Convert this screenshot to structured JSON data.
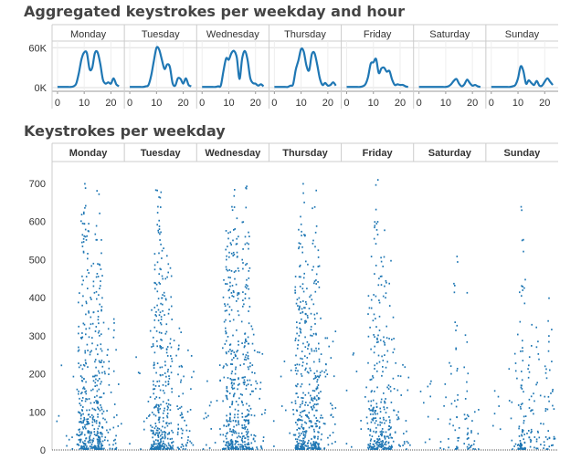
{
  "chart_data": [
    {
      "type": "line",
      "title": "Aggregated keystrokes per weekday and hour",
      "panels": [
        "Monday",
        "Tuesday",
        "Wednesday",
        "Thursday",
        "Friday",
        "Saturday",
        "Sunday"
      ],
      "xlabel": "",
      "ylabel": "",
      "x_ticks": [
        "0",
        "10",
        "20"
      ],
      "y_ticks": [
        "0K",
        "60K"
      ],
      "ylim": [
        0,
        70000
      ],
      "xlim": [
        -1,
        24
      ],
      "x": [
        0,
        1,
        2,
        3,
        4,
        5,
        6,
        7,
        8,
        9,
        10,
        11,
        12,
        13,
        14,
        15,
        16,
        17,
        18,
        19,
        20,
        21,
        22,
        23
      ],
      "series": [
        {
          "panel": "Monday",
          "values": [
            1000,
            1000,
            1000,
            1000,
            1000,
            1000,
            2000,
            6000,
            22000,
            43000,
            53000,
            52000,
            28000,
            30000,
            52000,
            53000,
            36000,
            12000,
            6000,
            8000,
            6000,
            14000,
            5000,
            2000
          ]
        },
        {
          "panel": "Tuesday",
          "values": [
            1000,
            1000,
            1000,
            1000,
            1000,
            1000,
            2000,
            4000,
            18000,
            40000,
            60000,
            57000,
            42000,
            28000,
            35000,
            31000,
            7000,
            3000,
            14000,
            13000,
            6000,
            14000,
            4000,
            2000
          ]
        },
        {
          "panel": "Wednesday",
          "values": [
            1000,
            1000,
            1000,
            1000,
            1000,
            1000,
            2000,
            3000,
            25000,
            44000,
            42000,
            52000,
            55000,
            45000,
            13000,
            44000,
            55000,
            42000,
            15000,
            7000,
            6000,
            3000,
            5000,
            2000
          ]
        },
        {
          "panel": "Thursday",
          "values": [
            1000,
            1000,
            1000,
            1000,
            1000,
            1000,
            3000,
            5000,
            27000,
            41000,
            58000,
            54000,
            33000,
            26000,
            50000,
            52000,
            35000,
            14000,
            4000,
            7000,
            3000,
            4000,
            8000,
            3000
          ]
        },
        {
          "panel": "Friday",
          "values": [
            1000,
            1000,
            1000,
            1000,
            1000,
            1000,
            2000,
            5000,
            16000,
            36000,
            38000,
            43000,
            22000,
            29000,
            30000,
            24000,
            25000,
            12000,
            4000,
            5000,
            4000,
            4000,
            2000,
            1000
          ]
        },
        {
          "panel": "Saturday",
          "values": [
            1000,
            1000,
            1000,
            1000,
            1000,
            1000,
            1000,
            1000,
            1000,
            1000,
            1000,
            2000,
            5000,
            10000,
            13000,
            6000,
            2000,
            5000,
            12000,
            7000,
            3000,
            4000,
            2000,
            1000
          ]
        },
        {
          "panel": "Sunday",
          "values": [
            1000,
            1000,
            1000,
            1000,
            1000,
            1000,
            1000,
            1000,
            2000,
            4000,
            14000,
            32000,
            25000,
            6000,
            11000,
            7000,
            4000,
            10000,
            3000,
            3000,
            9000,
            14000,
            9000,
            4000
          ]
        }
      ],
      "grid": true,
      "line_color": "#1f77b4"
    },
    {
      "type": "scatter",
      "title": "Keystrokes per weekday",
      "panels": [
        "Monday",
        "Tuesday",
        "Wednesday",
        "Thursday",
        "Friday",
        "Saturday",
        "Sunday"
      ],
      "xlabel": "",
      "ylabel": "",
      "y_ticks": [
        "0",
        "100",
        "200",
        "300",
        "400",
        "500",
        "600",
        "700"
      ],
      "ylim": [
        0,
        750
      ],
      "x": "time within the day (0-24h), jittered per panel",
      "point_density_by_hour": "mirrors the hourly profile of the chart above",
      "max_values": {
        "Monday": 720,
        "Tuesday": 705,
        "Wednesday": 700,
        "Thursday": 730,
        "Friday": 715,
        "Saturday": 520,
        "Sunday": 675
      },
      "point_color": "#1f77b4",
      "grid": false
    }
  ],
  "colors": {
    "line": "#1f77b4",
    "dots": "#1f77b4",
    "gridline": "#d9d9d9",
    "panel_separator": "#cccccc",
    "title": "#444444",
    "label": "#333333"
  }
}
